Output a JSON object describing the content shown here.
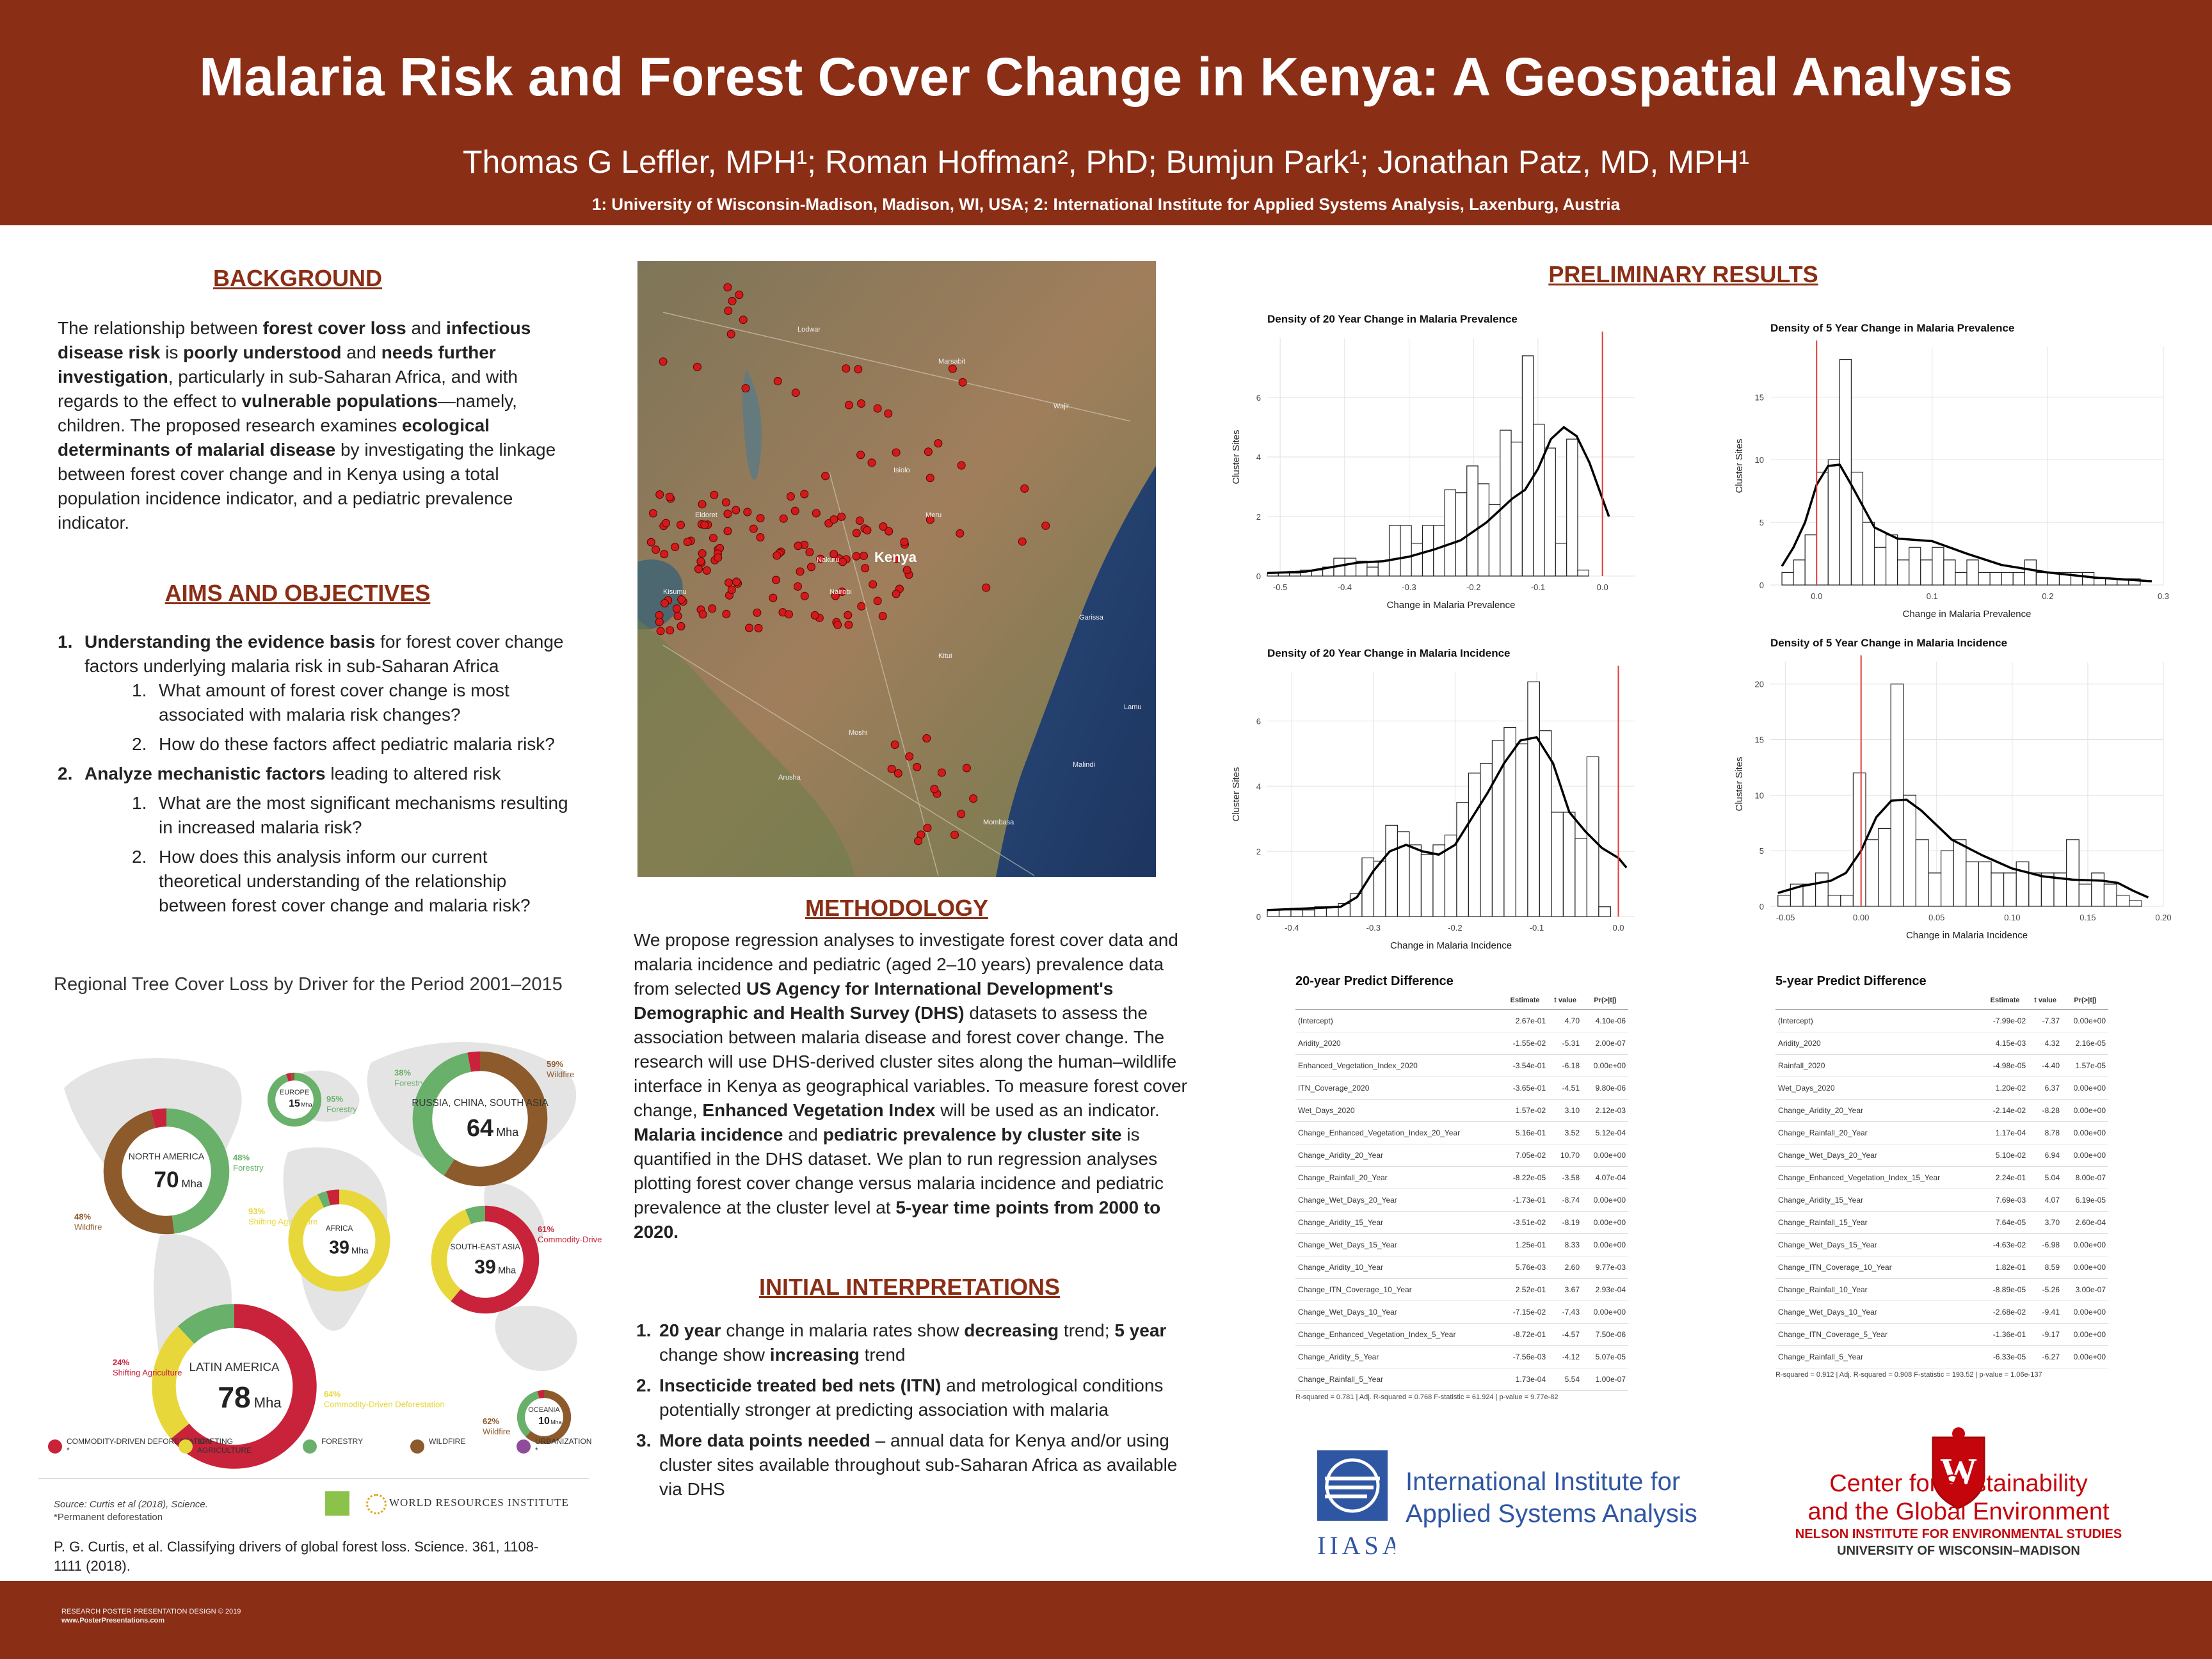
{
  "header": {
    "title": "Malaria Risk and Forest Cover Change in Kenya: A Geospatial Analysis",
    "authors": "Thomas G Leffler, MPH¹; Roman Hoffman², PhD; Bumjun Park¹; Jonathan Patz, MD, MPH¹",
    "affiliations": "1: University of Wisconsin-Madison, Madison, WI, USA; 2: International Institute for Applied Systems Analysis, Laxenburg, Austria"
  },
  "background": {
    "heading": "BACKGROUND",
    "html": "The relationship between <b>forest cover loss</b> and <b>infectious disease risk</b> is <b>poorly understood</b> and <b>needs further investigation</b>, particularly in sub-Saharan Africa, and with regards to the effect to <b>vulnerable populations</b>—namely, children. The proposed research examines <b>ecological determinants of malarial disease</b> by investigating the linkage between forest cover change and in Kenya using a total population incidence indicator, and a pediatric prevalence indicator."
  },
  "aims": {
    "heading": "AIMS AND OBJECTIVES",
    "item1_bold": "Understanding the evidence basis",
    "item1_rest": " for forest cover change factors underlying malaria risk in sub-Saharan Africa",
    "item1_sub1": "What amount of forest cover change is most associated with malaria risk changes?",
    "item1_sub2": "How do these factors affect pediatric malaria risk?",
    "item2_bold": "Analyze mechanistic factors",
    "item2_rest": " leading to altered risk",
    "item2_sub1": "What are the most significant mechanisms resulting in increased malaria risk?",
    "item2_sub2": "How does this analysis inform our current theoretical understanding of the relationship between forest cover change and malaria risk?"
  },
  "wri": {
    "title": "Regional Tree Cover Loss by Driver for the Period 2001–2015",
    "legend": [
      "COMMODITY-DRIVEN DEFORESTATION *",
      "SHIFTING AGRICULTURE",
      "FORESTRY",
      "WILDFIRE",
      "URBANIZATION *"
    ],
    "colors": [
      "#c8233b",
      "#e8d73a",
      "#69b06a",
      "#8c5a2b",
      "#8e4c9a"
    ],
    "source": "Source: Curtis et al (2018), Science.",
    "note": "*Permanent deforestation",
    "logo_text": "WORLD RESOURCES INSTITUTE",
    "citation": "P. G. Curtis, et al. Classifying drivers of global forest loss. Science. 361, 1108-1111 (2018).",
    "regions": [
      {
        "name": "NORTH AMERICA",
        "value": "70",
        "unit": "Mha",
        "p1": "48%",
        "l1": "Forestry",
        "p2": "48%",
        "l2": "Wildfire"
      },
      {
        "name": "EUROPE",
        "value": "15",
        "unit": "Mha",
        "p1": "95%",
        "l1": "Forestry"
      },
      {
        "name": "RUSSIA, CHINA, SOUTH ASIA",
        "value": "64",
        "unit": "Mha",
        "p1": "59%",
        "l1": "Wildfire",
        "p2": "38%",
        "l2": "Forestry"
      },
      {
        "name": "AFRICA",
        "value": "39",
        "unit": "Mha",
        "p1": "93%",
        "l1": "Shifting Agriculture"
      },
      {
        "name": "SOUTH-EAST ASIA",
        "value": "39",
        "unit": "Mha",
        "p1": "61%",
        "l1": "Commodity-Driven Deforestation"
      },
      {
        "name": "LATIN AMERICA",
        "value": "78",
        "unit": "Mha",
        "p1": "24%",
        "l1": "Shifting Agriculture",
        "p2": "64%",
        "l2": "Commodity-Driven Deforestation"
      },
      {
        "name": "OCEANIA",
        "value": "10",
        "unit": "Mha",
        "p1": "62%",
        "l1": "Wildfire"
      }
    ]
  },
  "map": {
    "country_label": "Kenya",
    "places": [
      "Nairobi",
      "Mombasa",
      "Nakuru",
      "Kisumu",
      "Eldoret",
      "Garissa",
      "Lamu",
      "Malindi",
      "Kitui",
      "Marsabit",
      "Wajir",
      "Lodwar",
      "Isiolo",
      "Arusha",
      "Moshi",
      "Meru"
    ]
  },
  "methodology": {
    "heading": "METHODOLOGY",
    "html": "We propose regression analyses to investigate forest cover data and malaria incidence and pediatric (aged 2–10 years) prevalence data from selected <b>US Agency for International Development's Demographic and Health Survey (DHS)</b> datasets to assess the association between malaria disease and forest cover change. The research will use DHS-derived cluster sites along the human–wildlife interface in Kenya as geographical variables. To measure forest cover change, <b>Enhanced Vegetation Index</b> will be used as an indicator. <b>Malaria incidence</b> and <b>pediatric prevalence by cluster site</b> is quantified in the DHS dataset. We plan to run regression analyses plotting forest cover change versus malaria incidence and pediatric prevalence at the cluster level at <b>5-year time points from 2000 to 2020.</b>"
  },
  "interp": {
    "heading": "INITIAL INTERPRETATIONS",
    "i1": "<b>20 year</b> change in malaria rates show <b>decreasing</b> trend; <b>5 year</b> change show <b>increasing</b> trend",
    "i2": "<b>Insecticide treated bed nets (ITN)</b> and metrological conditions potentially stronger at predicting association with malaria",
    "i3": "<b>More data points needed</b> – annual data for Kenya and/or using cluster sites available throughout sub-Saharan Africa as available via DHS"
  },
  "results": {
    "heading": "PRELIMINARY RESULTS"
  },
  "chart_data": [
    {
      "type": "histogram",
      "title": "Density of 20 Year Change in Malaria Prevalence",
      "xlabel": "Change in Malaria Prevalence",
      "ylabel": "Cluster Sites",
      "xlim": [
        -0.52,
        0.05
      ],
      "ylim": [
        0,
        8
      ],
      "xticks": [
        -0.5,
        -0.4,
        -0.3,
        -0.2,
        -0.1,
        0.0
      ],
      "xtick_labels": [
        "-0.5",
        "-0.4",
        "-0.3",
        "-0.2",
        "-0.1",
        "0.0"
      ],
      "yticks": [
        0,
        2,
        4,
        6
      ],
      "bin_start": -0.52,
      "bin_width": 0.0172,
      "counts": [
        0.1,
        0.1,
        0.1,
        0.2,
        0.2,
        0.3,
        0.6,
        0.6,
        0.5,
        0.3,
        0.5,
        1.7,
        1.7,
        1.1,
        1.7,
        1.7,
        2.9,
        2.8,
        3.7,
        3.1,
        2.4,
        4.9,
        4.5,
        7.4,
        5.1,
        4.3,
        1.1,
        4.6,
        0.2
      ],
      "density_x": [
        -0.52,
        -0.46,
        -0.42,
        -0.38,
        -0.34,
        -0.3,
        -0.26,
        -0.22,
        -0.18,
        -0.14,
        -0.12,
        -0.1,
        -0.08,
        -0.06,
        -0.04,
        -0.02,
        0.0,
        0.01
      ],
      "density_y": [
        0.1,
        0.15,
        0.3,
        0.45,
        0.5,
        0.65,
        0.9,
        1.2,
        1.8,
        2.6,
        2.9,
        3.6,
        4.6,
        5.0,
        4.7,
        3.8,
        2.6,
        2.0
      ],
      "vline": 0.0
    },
    {
      "type": "histogram",
      "title": "Density of 5 Year Change in Malaria Prevalence",
      "xlabel": "Change in Malaria Prevalence",
      "ylabel": "Cluster Sites",
      "xlim": [
        -0.04,
        0.3
      ],
      "ylim": [
        0,
        19
      ],
      "xticks": [
        0.0,
        0.1,
        0.2,
        0.3
      ],
      "xtick_labels": [
        "0.0",
        "0.1",
        "0.2",
        "0.3"
      ],
      "yticks": [
        0,
        5,
        10,
        15
      ],
      "bin_start": -0.03,
      "bin_width": 0.01,
      "counts": [
        1,
        2,
        4,
        9,
        10,
        18,
        9,
        5,
        3,
        4,
        2,
        3,
        2,
        3,
        2,
        1,
        2,
        1,
        1,
        1,
        1,
        2,
        1,
        1,
        1,
        1,
        1,
        0.5,
        0.5,
        0.5,
        0.5
      ],
      "density_x": [
        -0.03,
        -0.02,
        -0.01,
        0.0,
        0.01,
        0.02,
        0.03,
        0.05,
        0.07,
        0.1,
        0.13,
        0.16,
        0.2,
        0.24,
        0.29
      ],
      "density_y": [
        1.5,
        3.0,
        5.0,
        8.0,
        9.5,
        9.6,
        8.0,
        4.6,
        3.7,
        3.5,
        2.5,
        1.6,
        1.0,
        0.6,
        0.3
      ],
      "vline": 0.0
    },
    {
      "type": "histogram",
      "title": "Density of 20 Year Change in Malaria Incidence",
      "xlabel": "Change in Malaria Incidence",
      "ylabel": "Cluster Sites",
      "xlim": [
        -0.43,
        0.02
      ],
      "ylim": [
        0,
        7.5
      ],
      "xticks": [
        -0.4,
        -0.3,
        -0.2,
        -0.1,
        0.0
      ],
      "xtick_labels": [
        "-0.4",
        "-0.3",
        "-0.2",
        "-0.1",
        "0.0"
      ],
      "yticks": [
        0,
        2,
        4,
        6
      ],
      "bin_start": -0.43,
      "bin_width": 0.0145,
      "counts": [
        0.2,
        0.2,
        0.2,
        0.2,
        0.3,
        0.3,
        0.4,
        0.7,
        1.8,
        1.7,
        2.8,
        2.6,
        2.2,
        1.9,
        2.2,
        2.5,
        3.5,
        4.4,
        4.7,
        5.4,
        5.8,
        5.3,
        7.2,
        5.7,
        3.2,
        3.2,
        2.4,
        4.9,
        0.3
      ],
      "density_x": [
        -0.43,
        -0.38,
        -0.34,
        -0.32,
        -0.3,
        -0.28,
        -0.26,
        -0.24,
        -0.22,
        -0.2,
        -0.18,
        -0.16,
        -0.14,
        -0.12,
        -0.1,
        -0.08,
        -0.06,
        -0.04,
        -0.02,
        0.0,
        0.01
      ],
      "density_y": [
        0.2,
        0.25,
        0.3,
        0.6,
        1.4,
        2.0,
        2.2,
        2.0,
        1.9,
        2.2,
        3.0,
        3.8,
        4.7,
        5.4,
        5.5,
        4.7,
        3.2,
        2.6,
        2.1,
        1.8,
        1.5
      ],
      "vline": 0.0
    },
    {
      "type": "histogram",
      "title": "Density of 5 Year Change in Malaria Incidence",
      "xlabel": "Change in Malaria Incidence",
      "ylabel": "Cluster Sites",
      "xlim": [
        -0.06,
        0.2
      ],
      "ylim": [
        0,
        22
      ],
      "xticks": [
        -0.05,
        0.0,
        0.05,
        0.1,
        0.15,
        0.2
      ],
      "xtick_labels": [
        "-0.05",
        "0.00",
        "0.05",
        "0.10",
        "0.15",
        "0.20"
      ],
      "yticks": [
        0,
        5,
        10,
        15,
        20
      ],
      "bin_start": -0.055,
      "bin_width": 0.0083,
      "counts": [
        1,
        2,
        2,
        3,
        1,
        1,
        12,
        6,
        7,
        20,
        10,
        6,
        3,
        5,
        6,
        4,
        4,
        3,
        3,
        4,
        3,
        3,
        3,
        6,
        2,
        3,
        2,
        1,
        0.5
      ],
      "density_x": [
        -0.055,
        -0.04,
        -0.02,
        -0.01,
        0.0,
        0.01,
        0.02,
        0.03,
        0.04,
        0.06,
        0.08,
        0.1,
        0.12,
        0.14,
        0.16,
        0.17,
        0.18,
        0.19
      ],
      "density_y": [
        1.2,
        1.8,
        2.3,
        3.0,
        5.0,
        8.0,
        9.5,
        9.6,
        8.6,
        6.0,
        4.6,
        3.4,
        2.7,
        2.4,
        2.3,
        2.1,
        1.4,
        0.8
      ],
      "vline": 0.0
    }
  ],
  "tables": {
    "t20": {
      "title": "20-year Predict Difference",
      "headers": [
        "",
        "Estimate",
        "t value",
        "Pr(>|t|)"
      ],
      "rows": [
        [
          "(Intercept)",
          "2.67e-01",
          "4.70",
          "4.10e-06"
        ],
        [
          "Aridity_2020",
          "-1.55e-02",
          "-5.31",
          "2.00e-07"
        ],
        [
          "Enhanced_Vegetation_Index_2020",
          "-3.54e-01",
          "-6.18",
          "0.00e+00"
        ],
        [
          "ITN_Coverage_2020",
          "-3.65e-01",
          "-4.51",
          "9.80e-06"
        ],
        [
          "Wet_Days_2020",
          "1.57e-02",
          "3.10",
          "2.12e-03"
        ],
        [
          "Change_Enhanced_Vegetation_Index_20_Year",
          "5.16e-01",
          "3.52",
          "5.12e-04"
        ],
        [
          "Change_Aridity_20_Year",
          "7.05e-02",
          "10.70",
          "0.00e+00"
        ],
        [
          "Change_Rainfall_20_Year",
          "-8.22e-05",
          "-3.58",
          "4.07e-04"
        ],
        [
          "Change_Wet_Days_20_Year",
          "-1.73e-01",
          "-8.74",
          "0.00e+00"
        ],
        [
          "Change_Aridity_15_Year",
          "-3.51e-02",
          "-8.19",
          "0.00e+00"
        ],
        [
          "Change_Wet_Days_15_Year",
          "1.25e-01",
          "8.33",
          "0.00e+00"
        ],
        [
          "Change_Aridity_10_Year",
          "5.76e-03",
          "2.60",
          "9.77e-03"
        ],
        [
          "Change_ITN_Coverage_10_Year",
          "2.52e-01",
          "3.67",
          "2.93e-04"
        ],
        [
          "Change_Wet_Days_10_Year",
          "-7.15e-02",
          "-7.43",
          "0.00e+00"
        ],
        [
          "Change_Enhanced_Vegetation_Index_5_Year",
          "-8.72e-01",
          "-4.57",
          "7.50e-06"
        ],
        [
          "Change_Aridity_5_Year",
          "-7.56e-03",
          "-4.12",
          "5.07e-05"
        ],
        [
          "Change_Rainfall_5_Year",
          "1.73e-04",
          "5.54",
          "1.00e-07"
        ]
      ],
      "footer": "R-squared = 0.781 | Adj. R-squared = 0.768 F-statistic = 61.924 | p-value = 9.77e-82"
    },
    "t5": {
      "title": "5-year Predict Difference",
      "headers": [
        "",
        "Estimate",
        "t value",
        "Pr(>|t|)"
      ],
      "rows": [
        [
          "(Intercept)",
          "-7.99e-02",
          "-7.37",
          "0.00e+00"
        ],
        [
          "Aridity_2020",
          "4.15e-03",
          "4.32",
          "2.16e-05"
        ],
        [
          "Rainfall_2020",
          "-4.98e-05",
          "-4.40",
          "1.57e-05"
        ],
        [
          "Wet_Days_2020",
          "1.20e-02",
          "6.37",
          "0.00e+00"
        ],
        [
          "Change_Aridity_20_Year",
          "-2.14e-02",
          "-8.28",
          "0.00e+00"
        ],
        [
          "Change_Rainfall_20_Year",
          "1.17e-04",
          "8.78",
          "0.00e+00"
        ],
        [
          "Change_Wet_Days_20_Year",
          "5.10e-02",
          "6.94",
          "0.00e+00"
        ],
        [
          "Change_Enhanced_Vegetation_Index_15_Year",
          "2.24e-01",
          "5.04",
          "8.00e-07"
        ],
        [
          "Change_Aridity_15_Year",
          "7.69e-03",
          "4.07",
          "6.19e-05"
        ],
        [
          "Change_Rainfall_15_Year",
          "7.64e-05",
          "3.70",
          "2.60e-04"
        ],
        [
          "Change_Wet_Days_15_Year",
          "-4.63e-02",
          "-6.98",
          "0.00e+00"
        ],
        [
          "Change_ITN_Coverage_10_Year",
          "1.82e-01",
          "8.59",
          "0.00e+00"
        ],
        [
          "Change_Rainfall_10_Year",
          "-8.89e-05",
          "-5.26",
          "3.00e-07"
        ],
        [
          "Change_Wet_Days_10_Year",
          "-2.68e-02",
          "-9.41",
          "0.00e+00"
        ],
        [
          "Change_ITN_Coverage_5_Year",
          "-1.36e-01",
          "-9.17",
          "0.00e+00"
        ],
        [
          "Change_Rainfall_5_Year",
          "-6.33e-05",
          "-6.27",
          "0.00e+00"
        ]
      ],
      "footer": "R-squared = 0.912 | Adj. R-squared = 0.908 F-statistic = 193.52 | p-value = 1.06e-137"
    }
  },
  "logos": {
    "iiasa_line1": "International Institute for",
    "iiasa_line2": "Applied Systems Analysis",
    "iiasa_abbr": "IIASA",
    "cesge_line1": "Center for Sustainability",
    "cesge_line2": "and the Global Environment",
    "cesge_line3": "NELSON INSTITUTE FOR ENVIRONMENTAL STUDIES",
    "cesge_line4": "UNIVERSITY OF WISCONSIN–MADISON"
  },
  "footer": {
    "l1": "RESEARCH POSTER PRESENTATION DESIGN © 2019",
    "l2": "www.PosterPresentations.com"
  }
}
